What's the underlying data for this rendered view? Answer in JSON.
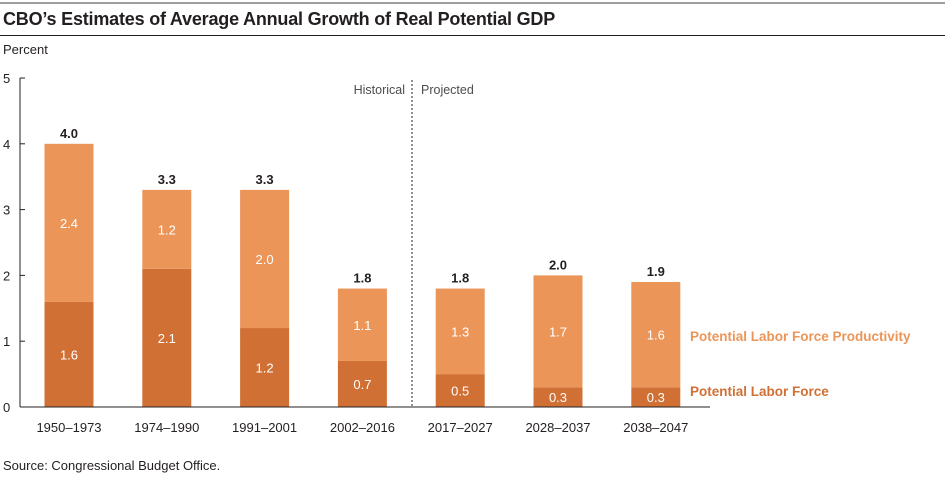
{
  "title": "CBO’s Estimates of Average Annual Growth of Real Potential GDP",
  "source": "Source: Congressional Budget Office.",
  "colors": {
    "labor_force": "#d17035",
    "productivity": "#ec9559",
    "legend_productivity": "#ec9559",
    "legend_labor_force": "#d17035"
  },
  "chart_data": {
    "type": "bar",
    "stacked": true,
    "ylabel": "Percent",
    "ylim": [
      0,
      5
    ],
    "yticks": [
      "0",
      "1",
      "2",
      "3",
      "4",
      "5"
    ],
    "categories": [
      "1950–1973",
      "1974–1990",
      "1991–2001",
      "2002–2016",
      "2017–2027",
      "2028–2037",
      "2038–2047"
    ],
    "series": [
      {
        "name": "Potential Labor Force",
        "values": [
          1.6,
          2.1,
          1.2,
          0.7,
          0.5,
          0.3,
          0.3
        ],
        "labels": [
          "1.6",
          "2.1",
          "1.2",
          "0.7",
          "0.5",
          "0.3",
          "0.3"
        ]
      },
      {
        "name": "Potential Labor Force Productivity",
        "values": [
          2.4,
          1.2,
          2.0,
          1.1,
          1.3,
          1.7,
          1.6
        ],
        "labels": [
          "2.4",
          "1.2",
          "2.0",
          "1.1",
          "1.3",
          "1.7",
          "1.6"
        ]
      }
    ],
    "totals": [
      4.0,
      3.3,
      3.3,
      1.8,
      1.8,
      2.0,
      1.9
    ],
    "total_labels": [
      "4.0",
      "3.3",
      "3.3",
      "1.8",
      "1.8",
      "2.0",
      "1.9"
    ],
    "annotations": {
      "left": "Historical",
      "right": "Projected"
    },
    "legend_placement": "right"
  }
}
